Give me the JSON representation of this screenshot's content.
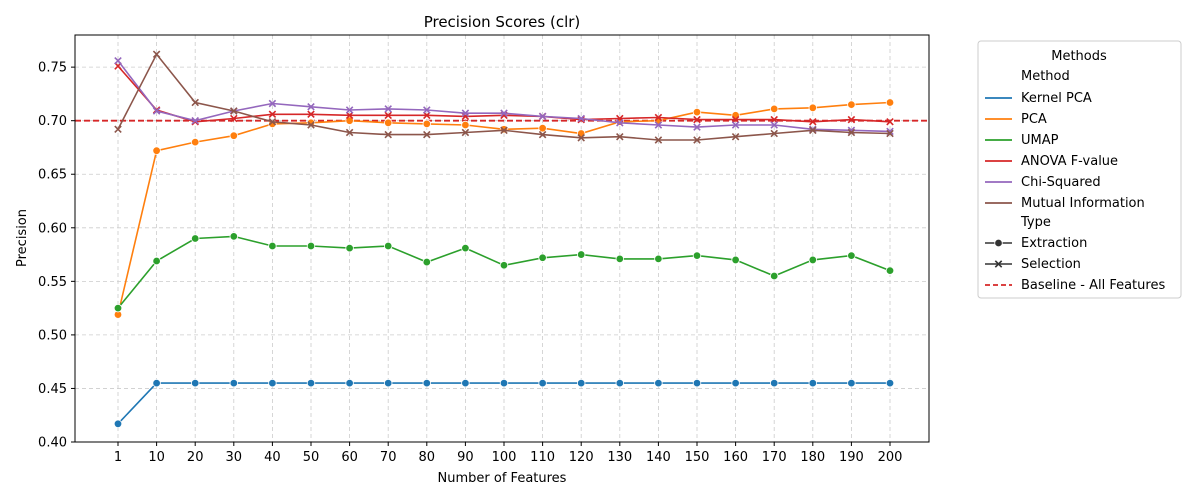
{
  "chart_data": {
    "type": "line",
    "title": "Precision Scores (clr)",
    "xlabel": "Number of Features",
    "ylabel": "Precision",
    "categories": [
      "1",
      "10",
      "20",
      "30",
      "40",
      "50",
      "60",
      "70",
      "80",
      "90",
      "100",
      "110",
      "120",
      "130",
      "140",
      "150",
      "160",
      "170",
      "180",
      "190",
      "200"
    ],
    "ylim": [
      0.4,
      0.78
    ],
    "yticks": [
      "0.40",
      "0.45",
      "0.50",
      "0.55",
      "0.60",
      "0.65",
      "0.70",
      "0.75"
    ],
    "grid": true,
    "baseline": {
      "name": "Baseline - All Features",
      "value": 0.7,
      "color": "#d62728"
    },
    "legend": {
      "title": "Methods",
      "placement": "outside right",
      "method_header": "Method",
      "type_header": "Type",
      "types": [
        {
          "name": "Extraction",
          "marker": "circle"
        },
        {
          "name": "Selection",
          "marker": "x"
        }
      ]
    },
    "series": [
      {
        "name": "Kernel PCA",
        "color": "#1f77b4",
        "marker": "circle",
        "values": [
          0.417,
          0.455,
          0.455,
          0.455,
          0.455,
          0.455,
          0.455,
          0.455,
          0.455,
          0.455,
          0.455,
          0.455,
          0.455,
          0.455,
          0.455,
          0.455,
          0.455,
          0.455,
          0.455,
          0.455,
          0.455
        ]
      },
      {
        "name": "PCA",
        "color": "#ff7f0e",
        "marker": "circle",
        "values": [
          0.519,
          0.672,
          0.68,
          0.686,
          0.697,
          0.698,
          0.7,
          0.698,
          0.697,
          0.696,
          0.692,
          0.693,
          0.688,
          0.699,
          0.7,
          0.708,
          0.705,
          0.711,
          0.712,
          0.715,
          0.717
        ]
      },
      {
        "name": "UMAP",
        "color": "#2ca02c",
        "marker": "circle",
        "values": [
          0.525,
          0.569,
          0.59,
          0.592,
          0.583,
          0.583,
          0.581,
          0.583,
          0.568,
          0.581,
          0.565,
          0.572,
          0.575,
          0.571,
          0.571,
          0.574,
          0.57,
          0.555,
          0.57,
          0.574,
          0.56
        ]
      },
      {
        "name": "ANOVA F-value",
        "color": "#d62728",
        "marker": "x",
        "values": [
          0.751,
          0.71,
          0.699,
          0.702,
          0.706,
          0.706,
          0.705,
          0.705,
          0.705,
          0.704,
          0.705,
          0.704,
          0.701,
          0.702,
          0.703,
          0.701,
          0.701,
          0.701,
          0.699,
          0.701,
          0.699
        ]
      },
      {
        "name": "Chi-Squared",
        "color": "#9467bd",
        "marker": "x",
        "values": [
          0.756,
          0.709,
          0.7,
          0.709,
          0.716,
          0.713,
          0.71,
          0.711,
          0.71,
          0.707,
          0.707,
          0.704,
          0.702,
          0.698,
          0.696,
          0.694,
          0.696,
          0.696,
          0.692,
          0.691,
          0.69
        ]
      },
      {
        "name": "Mutual Information",
        "color": "#8c564b",
        "marker": "x",
        "values": [
          0.692,
          0.762,
          0.717,
          0.709,
          0.699,
          0.696,
          0.689,
          0.687,
          0.687,
          0.689,
          0.691,
          0.687,
          0.684,
          0.685,
          0.682,
          0.682,
          0.685,
          0.688,
          0.691,
          0.689,
          0.688
        ]
      }
    ]
  }
}
